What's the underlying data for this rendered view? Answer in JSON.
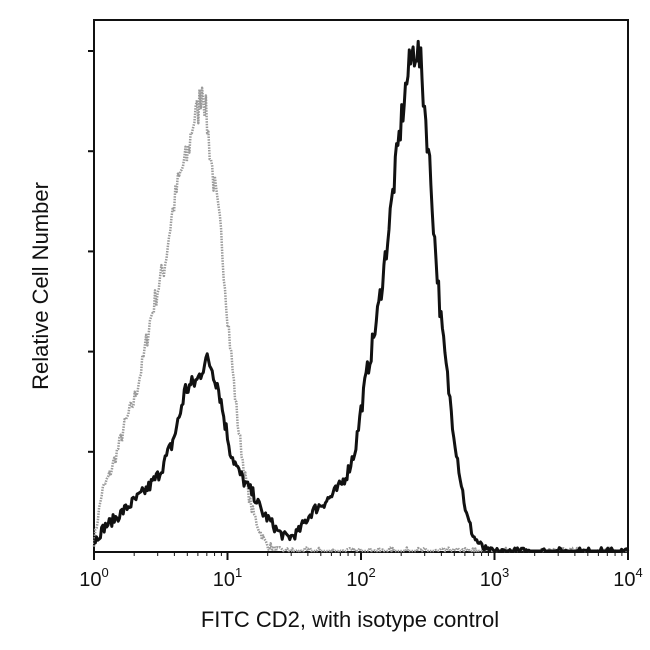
{
  "chart_data": {
    "type": "line",
    "title": "",
    "xlabel": "FITC CD2, with isotype control",
    "ylabel": "Relative Cell Number",
    "x_scale": "log",
    "xlim": [
      1,
      10000
    ],
    "ylim": [
      0,
      1
    ],
    "x_ticks": [
      {
        "base": "10",
        "exp": "0",
        "value": 1
      },
      {
        "base": "10",
        "exp": "1",
        "value": 10
      },
      {
        "base": "10",
        "exp": "2",
        "value": 100
      },
      {
        "base": "10",
        "exp": "3",
        "value": 1000
      },
      {
        "base": "10",
        "exp": "4",
        "value": 10000
      }
    ],
    "y_tick_count": 5,
    "grid": false,
    "legend": "none",
    "series": [
      {
        "style": "gray-dotted",
        "color": "#9a9a9a",
        "x": [
          1,
          1.15,
          1.3,
          1.5,
          1.7,
          2,
          2.3,
          2.6,
          3,
          3.4,
          3.8,
          4.2,
          4.6,
          5,
          5.5,
          6,
          6.5,
          7,
          7.5,
          8,
          9,
          10,
          11,
          12,
          13.5,
          15,
          17,
          19,
          22,
          25,
          28,
          32,
          40,
          60,
          100,
          1000,
          10000
        ],
        "y": [
          0.02,
          0.12,
          0.15,
          0.2,
          0.25,
          0.3,
          0.37,
          0.45,
          0.52,
          0.57,
          0.66,
          0.72,
          0.76,
          0.78,
          0.85,
          0.87,
          0.93,
          0.85,
          0.78,
          0.72,
          0.62,
          0.47,
          0.35,
          0.25,
          0.15,
          0.09,
          0.05,
          0.02,
          0.005,
          0,
          0,
          0,
          0,
          0,
          0,
          0,
          0
        ]
      },
      {
        "style": "black-solid",
        "color": "#111111",
        "x": [
          1,
          1.2,
          1.5,
          1.8,
          2.2,
          2.6,
          3,
          3.4,
          3.8,
          4.3,
          4.8,
          5.4,
          6,
          6.8,
          7.5,
          8.5,
          9.5,
          10.5,
          12,
          14,
          16,
          18,
          21,
          24,
          27,
          30,
          34,
          38,
          43,
          48,
          54,
          60,
          70,
          80,
          90,
          100,
          110,
          120,
          135,
          150,
          165,
          180,
          200,
          220,
          240,
          260,
          280,
          300,
          330,
          360,
          400,
          450,
          500,
          560,
          620,
          700,
          800,
          900,
          1000,
          1200,
          1500,
          2000,
          3000,
          5000,
          8000,
          10000
        ],
        "y": [
          0.02,
          0.05,
          0.07,
          0.09,
          0.11,
          0.13,
          0.15,
          0.18,
          0.21,
          0.26,
          0.32,
          0.33,
          0.34,
          0.38,
          0.37,
          0.33,
          0.26,
          0.2,
          0.16,
          0.13,
          0.11,
          0.08,
          0.06,
          0.04,
          0.03,
          0.03,
          0.04,
          0.06,
          0.08,
          0.09,
          0.1,
          0.11,
          0.13,
          0.16,
          0.2,
          0.28,
          0.35,
          0.4,
          0.48,
          0.57,
          0.66,
          0.75,
          0.85,
          0.93,
          0.98,
          1.0,
          0.96,
          0.88,
          0.75,
          0.6,
          0.45,
          0.33,
          0.23,
          0.14,
          0.07,
          0.03,
          0.01,
          0,
          0,
          0,
          0,
          0,
          0,
          0,
          0,
          0
        ]
      }
    ]
  }
}
